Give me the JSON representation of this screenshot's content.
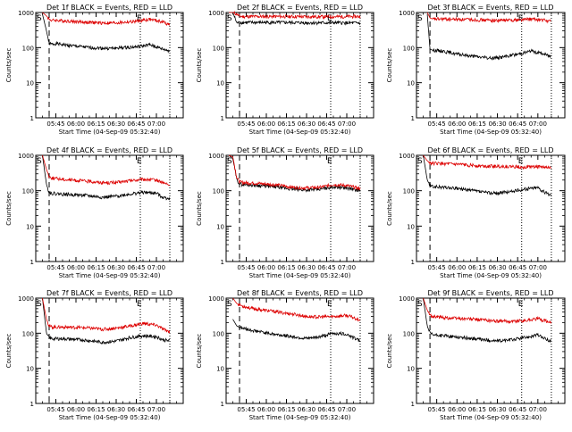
{
  "colors": {
    "events": "#000000",
    "lld": "#dd0000",
    "frame": "#000000"
  },
  "chart_data": [
    {
      "type": "line",
      "title": "Det 1f BLACK = Events, RED = LLD",
      "ylabel": "Counts/sec",
      "xlabel": "Start Time (04-Sep-09 05:32:40)",
      "yscale": "log",
      "ylim": [
        1,
        1000
      ],
      "ytick_labels": [
        "1",
        "10",
        "100",
        "1000"
      ],
      "xtick_labels": [
        "05:45",
        "06:00",
        "06:15",
        "06:30",
        "06:45",
        "07:00"
      ],
      "x_minutes": [
        0,
        15,
        30,
        45,
        60,
        75,
        90,
        110
      ],
      "s_marker": "S",
      "e_marker": "E",
      "s_line_x": 10,
      "e_lines_x": [
        78,
        100
      ],
      "series": [
        {
          "role": "events",
          "x": [
            5,
            8,
            10,
            12,
            15,
            25,
            40,
            55,
            65,
            75,
            85,
            95,
            100
          ],
          "y": [
            900,
            300,
            130,
            125,
            130,
            115,
            100,
            95,
            100,
            105,
            120,
            90,
            80
          ]
        },
        {
          "role": "lld",
          "x": [
            5,
            8,
            10,
            12,
            15,
            25,
            40,
            55,
            65,
            75,
            85,
            95,
            100
          ],
          "y": [
            1000,
            800,
            640,
            600,
            600,
            570,
            520,
            500,
            520,
            560,
            640,
            540,
            450
          ]
        }
      ]
    },
    {
      "type": "line",
      "title": "Det 2f BLACK = Events, RED = LLD",
      "ylabel": "Counts/sec",
      "xlabel": "Start Time (04-Sep-09 05:32:40)",
      "yscale": "log",
      "ylim": [
        1,
        1000
      ],
      "ytick_labels": [
        "1",
        "10",
        "100",
        "1000"
      ],
      "xtick_labels": [
        "05:45",
        "06:00",
        "06:15",
        "06:30",
        "06:45",
        "07:00"
      ],
      "x_minutes": [
        0,
        15,
        30,
        45,
        60,
        75,
        90,
        110
      ],
      "s_marker": "S",
      "e_marker": "E",
      "s_line_x": 10,
      "e_lines_x": [
        78,
        100
      ],
      "series": [
        {
          "role": "events",
          "x": [
            2,
            5,
            8,
            10,
            12,
            20,
            40,
            60,
            80,
            100
          ],
          "y": [
            1000,
            1000,
            500,
            520,
            520,
            520,
            520,
            510,
            510,
            500
          ]
        },
        {
          "role": "lld",
          "x": [
            2,
            5,
            8,
            10,
            12,
            20,
            40,
            60,
            80,
            100
          ],
          "y": [
            1000,
            1000,
            900,
            780,
            770,
            770,
            770,
            760,
            760,
            770
          ]
        }
      ]
    },
    {
      "type": "line",
      "title": "Det 3f BLACK = Events, RED = LLD",
      "ylabel": "Counts/sec",
      "xlabel": "Start Time (04-Sep-09 05:32:40)",
      "yscale": "log",
      "ylim": [
        1,
        1000
      ],
      "ytick_labels": [
        "1",
        "10",
        "100",
        "1000"
      ],
      "xtick_labels": [
        "05:45",
        "06:00",
        "06:15",
        "06:30",
        "06:45",
        "07:00"
      ],
      "x_minutes": [
        0,
        15,
        30,
        45,
        60,
        75,
        90,
        110
      ],
      "s_marker": "S",
      "e_marker": "E",
      "s_line_x": 10,
      "e_lines_x": [
        78,
        100
      ],
      "series": [
        {
          "role": "events",
          "x": [
            8,
            10,
            12,
            20,
            30,
            45,
            55,
            65,
            75,
            85,
            95,
            100
          ],
          "y": [
            900,
            90,
            85,
            80,
            65,
            55,
            50,
            55,
            65,
            80,
            65,
            55
          ]
        },
        {
          "role": "lld",
          "x": [
            8,
            10,
            12,
            20,
            30,
            45,
            55,
            65,
            75,
            85,
            95,
            100
          ],
          "y": [
            1000,
            700,
            650,
            650,
            640,
            620,
            600,
            600,
            620,
            650,
            600,
            560
          ]
        }
      ]
    },
    {
      "type": "line",
      "title": "Det 4f BLACK = Events, RED = LLD",
      "ylabel": "Counts/sec",
      "xlabel": "Start Time (04-Sep-09 05:32:40)",
      "yscale": "log",
      "ylim": [
        1,
        1000
      ],
      "ytick_labels": [
        "1",
        "10",
        "100",
        "1000"
      ],
      "xtick_labels": [
        "05:45",
        "06:00",
        "06:15",
        "06:30",
        "06:45",
        "07:00"
      ],
      "x_minutes": [
        0,
        15,
        30,
        45,
        60,
        75,
        90,
        110
      ],
      "s_marker": "S",
      "e_marker": "E",
      "s_line_x": 10,
      "e_lines_x": [
        78,
        100
      ],
      "series": [
        {
          "role": "events",
          "x": [
            5,
            8,
            10,
            12,
            20,
            35,
            50,
            60,
            70,
            80,
            90,
            95,
            100
          ],
          "y": [
            1000,
            150,
            90,
            85,
            80,
            75,
            65,
            70,
            80,
            90,
            85,
            65,
            60
          ]
        },
        {
          "role": "lld",
          "x": [
            5,
            8,
            10,
            12,
            20,
            35,
            50,
            60,
            70,
            80,
            90,
            95,
            100
          ],
          "y": [
            1000,
            400,
            250,
            230,
            210,
            190,
            170,
            170,
            190,
            210,
            200,
            170,
            140
          ]
        }
      ]
    },
    {
      "type": "line",
      "title": "Det 5f BLACK = Events, RED = LLD",
      "ylabel": "Counts/sec",
      "xlabel": "Start Time (04-Sep-09 05:32:40)",
      "yscale": "log",
      "ylim": [
        1,
        1000
      ],
      "ytick_labels": [
        "1",
        "10",
        "100",
        "1000"
      ],
      "xtick_labels": [
        "05:45",
        "06:00",
        "06:15",
        "06:30",
        "06:45",
        "07:00"
      ],
      "x_minutes": [
        0,
        15,
        30,
        45,
        60,
        75,
        90,
        110
      ],
      "s_marker": "S",
      "e_marker": "E",
      "s_line_x": 10,
      "e_lines_x": [
        78,
        100
      ],
      "series": [
        {
          "role": "events",
          "x": [
            2,
            5,
            8,
            10,
            12,
            20,
            35,
            50,
            60,
            70,
            80,
            90,
            100
          ],
          "y": [
            1000,
            800,
            200,
            160,
            150,
            145,
            130,
            110,
            105,
            110,
            130,
            120,
            100
          ]
        },
        {
          "role": "lld",
          "x": [
            2,
            5,
            8,
            10,
            12,
            20,
            35,
            50,
            60,
            70,
            80,
            90,
            100
          ],
          "y": [
            1000,
            900,
            230,
            180,
            170,
            165,
            150,
            125,
            120,
            125,
            150,
            140,
            115
          ]
        }
      ]
    },
    {
      "type": "line",
      "title": "Det 6f BLACK = Events, RED = LLD",
      "ylabel": "Counts/sec",
      "xlabel": "Start Time (04-Sep-09 05:32:40)",
      "yscale": "log",
      "ylim": [
        1,
        1000
      ],
      "ytick_labels": [
        "1",
        "10",
        "100",
        "1000"
      ],
      "xtick_labels": [
        "05:45",
        "06:00",
        "06:15",
        "06:30",
        "06:45",
        "07:00"
      ],
      "x_minutes": [
        0,
        15,
        30,
        45,
        60,
        75,
        90,
        110
      ],
      "s_marker": "S",
      "e_marker": "E",
      "s_line_x": 10,
      "e_lines_x": [
        78,
        100
      ],
      "series": [
        {
          "role": "events",
          "x": [
            5,
            8,
            10,
            12,
            20,
            35,
            50,
            60,
            70,
            80,
            90,
            95,
            100
          ],
          "y": [
            1000,
            200,
            140,
            130,
            125,
            110,
            90,
            85,
            95,
            110,
            125,
            90,
            75
          ]
        },
        {
          "role": "lld",
          "x": [
            5,
            8,
            10,
            12,
            20,
            35,
            50,
            60,
            70,
            80,
            90,
            95,
            100
          ],
          "y": [
            1000,
            700,
            620,
            600,
            580,
            540,
            500,
            490,
            480,
            470,
            480,
            460,
            440
          ]
        }
      ]
    },
    {
      "type": "line",
      "title": "Det 7f BLACK = Events, RED = LLD",
      "ylabel": "Counts/sec",
      "xlabel": "Start Time (04-Sep-09 05:32:40)",
      "yscale": "log",
      "ylim": [
        1,
        1000
      ],
      "ytick_labels": [
        "1",
        "10",
        "100",
        "1000"
      ],
      "xtick_labels": [
        "05:45",
        "06:00",
        "06:15",
        "06:30",
        "06:45",
        "07:00"
      ],
      "x_minutes": [
        0,
        15,
        30,
        45,
        60,
        75,
        90,
        110
      ],
      "s_marker": "S",
      "e_marker": "E",
      "s_line_x": 10,
      "e_lines_x": [
        78,
        100
      ],
      "series": [
        {
          "role": "events",
          "x": [
            5,
            8,
            10,
            12,
            20,
            35,
            50,
            60,
            70,
            80,
            90,
            95,
            100
          ],
          "y": [
            1000,
            100,
            75,
            70,
            70,
            65,
            55,
            60,
            75,
            85,
            80,
            65,
            60
          ]
        },
        {
          "role": "lld",
          "x": [
            5,
            8,
            10,
            12,
            20,
            35,
            50,
            60,
            70,
            80,
            90,
            95,
            100
          ],
          "y": [
            1000,
            250,
            160,
            150,
            150,
            145,
            130,
            140,
            160,
            190,
            170,
            130,
            110
          ]
        }
      ]
    },
    {
      "type": "line",
      "title": "Det 8f BLACK = Events, RED = LLD",
      "ylabel": "Counts/sec",
      "xlabel": "Start Time (04-Sep-09 05:32:40)",
      "yscale": "log",
      "ylim": [
        1,
        1000
      ],
      "ytick_labels": [
        "1",
        "10",
        "100",
        "1000"
      ],
      "xtick_labels": [
        "05:45",
        "06:00",
        "06:15",
        "06:30",
        "06:45",
        "07:00"
      ],
      "x_minutes": [
        0,
        15,
        30,
        45,
        60,
        75,
        90,
        110
      ],
      "s_marker": "S",
      "e_marker": "E",
      "s_line_x": 10,
      "e_lines_x": [
        78,
        100
      ],
      "series": [
        {
          "role": "events",
          "x": [
            5,
            8,
            10,
            12,
            20,
            35,
            50,
            60,
            70,
            80,
            90,
            95,
            100
          ],
          "y": [
            250,
            160,
            150,
            140,
            120,
            95,
            80,
            70,
            80,
            100,
            95,
            75,
            60
          ]
        },
        {
          "role": "lld",
          "x": [
            5,
            8,
            10,
            12,
            20,
            35,
            50,
            60,
            70,
            80,
            90,
            95,
            100
          ],
          "y": [
            1000,
            700,
            650,
            600,
            500,
            420,
            350,
            300,
            290,
            300,
            320,
            280,
            240
          ]
        }
      ]
    },
    {
      "type": "line",
      "title": "Det 9f BLACK = Events, RED = LLD",
      "ylabel": "Counts/sec",
      "xlabel": "Start Time (04-Sep-09 05:32:40)",
      "yscale": "log",
      "ylim": [
        1,
        1000
      ],
      "ytick_labels": [
        "1",
        "10",
        "100",
        "1000"
      ],
      "xtick_labels": [
        "05:45",
        "06:00",
        "06:15",
        "06:30",
        "06:45",
        "07:00"
      ],
      "x_minutes": [
        0,
        15,
        30,
        45,
        60,
        75,
        90,
        110
      ],
      "s_marker": "S",
      "e_marker": "E",
      "s_line_x": 10,
      "e_lines_x": [
        78,
        100
      ],
      "series": [
        {
          "role": "events",
          "x": [
            5,
            8,
            10,
            12,
            20,
            35,
            50,
            60,
            70,
            80,
            90,
            95,
            100
          ],
          "y": [
            1000,
            160,
            100,
            90,
            85,
            75,
            65,
            60,
            65,
            75,
            90,
            70,
            60
          ]
        },
        {
          "role": "lld",
          "x": [
            5,
            8,
            10,
            12,
            20,
            35,
            50,
            60,
            70,
            80,
            90,
            95,
            100
          ],
          "y": [
            1000,
            450,
            330,
            300,
            280,
            260,
            240,
            220,
            220,
            230,
            260,
            230,
            200
          ]
        }
      ]
    }
  ]
}
